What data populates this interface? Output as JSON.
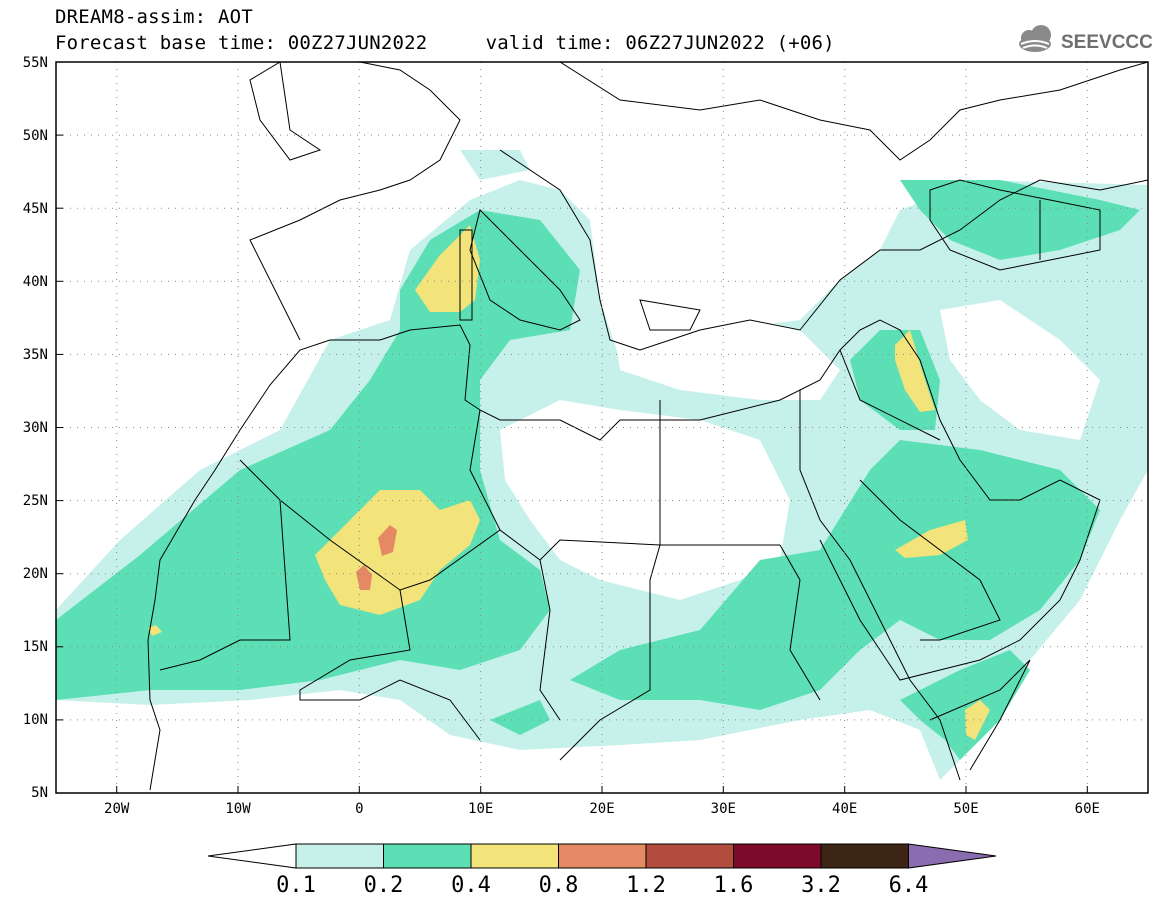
{
  "header": {
    "title": "DREAM8-assim: AOT",
    "base_time_label": "Forecast base time: 00Z27JUN2022",
    "valid_time_label": "valid time: 06Z27JUN2022 (+06)",
    "logo_text": "SEEVCCC"
  },
  "map": {
    "lon_range": [
      -25,
      65
    ],
    "lat_range": [
      5,
      55
    ],
    "lat_ticks": [
      "55N",
      "50N",
      "45N",
      "40N",
      "35N",
      "30N",
      "25N",
      "20N",
      "15N",
      "10N",
      "5N"
    ],
    "lon_ticks": [
      "20W",
      "10W",
      "0",
      "10E",
      "20E",
      "30E",
      "40E",
      "50E",
      "60E"
    ],
    "grid": "dotted"
  },
  "legend": {
    "levels": [
      "0.1",
      "0.2",
      "0.4",
      "0.8",
      "1.2",
      "1.6",
      "3.2",
      "6.4"
    ],
    "colors": [
      "#ffffff",
      "#c6f1ea",
      "#5cdfb5",
      "#f2e37a",
      "#e58964",
      "#b24c3c",
      "#7d0a2c",
      "#3c2514",
      "#8a6cb0"
    ]
  }
}
